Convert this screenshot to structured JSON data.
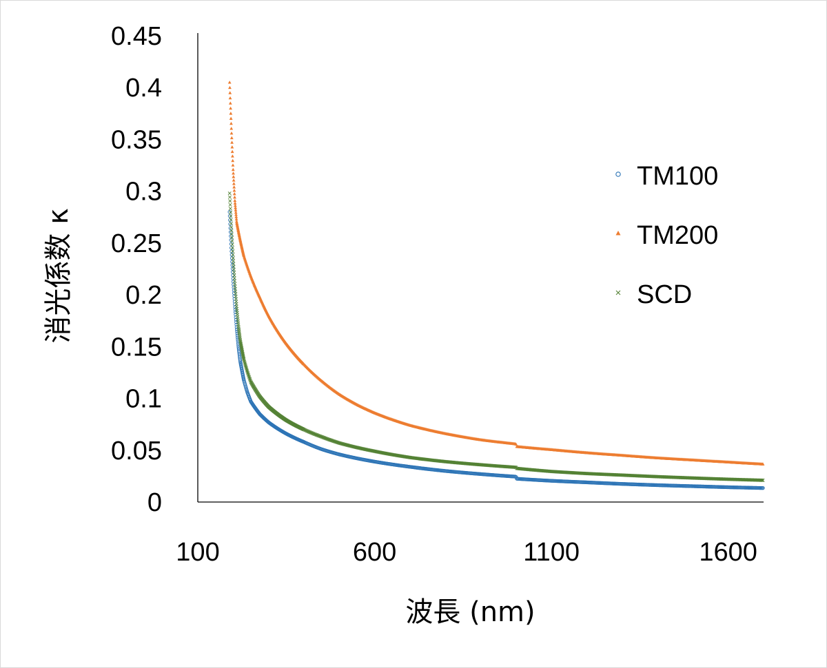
{
  "chart_data": {
    "type": "scatter",
    "title": "",
    "xlabel": "波長 (nm)",
    "ylabel": "消光係数 κ",
    "xlim": [
      100,
      1700
    ],
    "ylim": [
      0,
      0.45
    ],
    "x_ticks": [
      "100",
      "600",
      "1100",
      "1600"
    ],
    "y_ticks": [
      "0",
      "0.05",
      "0.1",
      "0.15",
      "0.2",
      "0.25",
      "0.3",
      "0.35",
      "0.4",
      "0.45"
    ],
    "grid": false,
    "legend_position": "right",
    "series": [
      {
        "name": "TM100",
        "marker": "circle",
        "color": "#2e75b6",
        "points": [
          [
            190,
            0.28
          ],
          [
            195,
            0.245
          ],
          [
            200,
            0.215
          ],
          [
            205,
            0.19
          ],
          [
            210,
            0.168
          ],
          [
            215,
            0.15
          ],
          [
            220,
            0.136
          ],
          [
            230,
            0.118
          ],
          [
            240,
            0.106
          ],
          [
            250,
            0.097
          ],
          [
            275,
            0.085
          ],
          [
            300,
            0.077
          ],
          [
            350,
            0.066
          ],
          [
            400,
            0.058
          ],
          [
            450,
            0.051
          ],
          [
            500,
            0.046
          ],
          [
            600,
            0.039
          ],
          [
            700,
            0.034
          ],
          [
            800,
            0.03
          ],
          [
            900,
            0.027
          ],
          [
            1000,
            0.0245
          ],
          [
            1001,
            0.0225
          ],
          [
            1100,
            0.0205
          ],
          [
            1200,
            0.019
          ],
          [
            1300,
            0.0175
          ],
          [
            1400,
            0.0163
          ],
          [
            1500,
            0.0153
          ],
          [
            1600,
            0.0143
          ],
          [
            1700,
            0.0135
          ]
        ]
      },
      {
        "name": "TM200",
        "marker": "triangle",
        "color": "#ed7d31",
        "points": [
          [
            190,
            0.405
          ],
          [
            195,
            0.36
          ],
          [
            200,
            0.32
          ],
          [
            205,
            0.29
          ],
          [
            210,
            0.27
          ],
          [
            220,
            0.253
          ],
          [
            230,
            0.238
          ],
          [
            250,
            0.218
          ],
          [
            275,
            0.198
          ],
          [
            300,
            0.18
          ],
          [
            350,
            0.153
          ],
          [
            400,
            0.133
          ],
          [
            450,
            0.117
          ],
          [
            500,
            0.104
          ],
          [
            550,
            0.094
          ],
          [
            600,
            0.086
          ],
          [
            700,
            0.074
          ],
          [
            800,
            0.066
          ],
          [
            900,
            0.06
          ],
          [
            1000,
            0.056
          ],
          [
            1001,
            0.0535
          ],
          [
            1100,
            0.0505
          ],
          [
            1200,
            0.0475
          ],
          [
            1300,
            0.045
          ],
          [
            1400,
            0.0425
          ],
          [
            1500,
            0.0405
          ],
          [
            1600,
            0.0385
          ],
          [
            1700,
            0.0365
          ]
        ]
      },
      {
        "name": "SCD",
        "marker": "x",
        "color": "#548235",
        "points": [
          [
            190,
            0.298
          ],
          [
            195,
            0.265
          ],
          [
            200,
            0.235
          ],
          [
            205,
            0.21
          ],
          [
            210,
            0.188
          ],
          [
            215,
            0.17
          ],
          [
            220,
            0.156
          ],
          [
            230,
            0.138
          ],
          [
            240,
            0.126
          ],
          [
            250,
            0.116
          ],
          [
            275,
            0.102
          ],
          [
            300,
            0.092
          ],
          [
            350,
            0.079
          ],
          [
            400,
            0.07
          ],
          [
            450,
            0.063
          ],
          [
            500,
            0.057
          ],
          [
            600,
            0.049
          ],
          [
            700,
            0.043
          ],
          [
            800,
            0.039
          ],
          [
            900,
            0.036
          ],
          [
            1000,
            0.0335
          ],
          [
            1001,
            0.0325
          ],
          [
            1100,
            0.0295
          ],
          [
            1200,
            0.0275
          ],
          [
            1300,
            0.026
          ],
          [
            1400,
            0.0245
          ],
          [
            1500,
            0.0232
          ],
          [
            1600,
            0.022
          ],
          [
            1700,
            0.021
          ]
        ]
      }
    ]
  }
}
